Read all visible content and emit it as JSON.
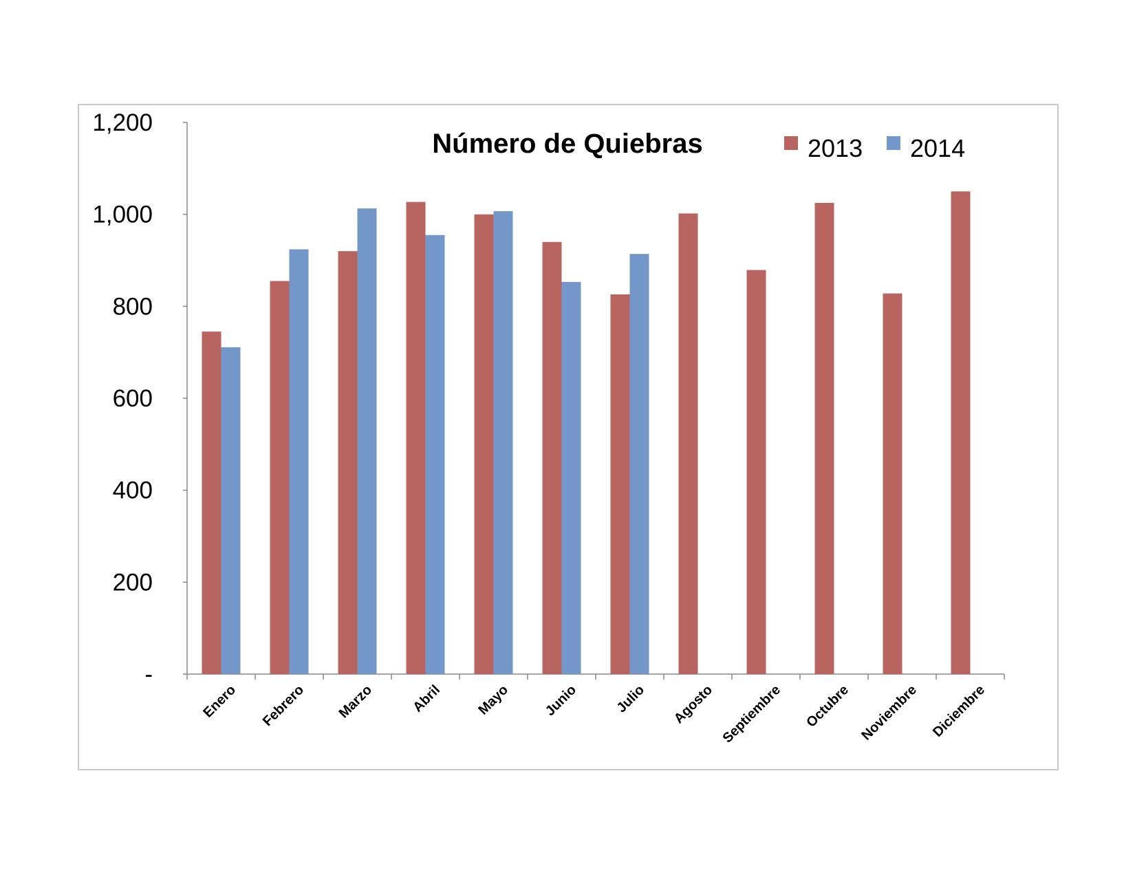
{
  "chart_data": {
    "type": "bar",
    "title": "Número de Quiebras",
    "categories": [
      "Enero",
      "Febrero",
      "Marzo",
      "Abril",
      "Mayo",
      "Junio",
      "Julio",
      "Agosto",
      "Septiembre",
      "Octubre",
      "Noviembre",
      "Diciembre"
    ],
    "series": [
      {
        "name": "2013",
        "color": "#b86562",
        "values": [
          745,
          855,
          920,
          1027,
          1000,
          940,
          826,
          1002,
          879,
          1025,
          828,
          1050
        ]
      },
      {
        "name": "2014",
        "color": "#7497c9",
        "values": [
          711,
          924,
          1013,
          955,
          1007,
          853,
          914,
          null,
          null,
          null,
          null,
          null
        ]
      }
    ],
    "ylim": [
      0,
      1200
    ],
    "yticks": [
      0,
      200,
      400,
      600,
      800,
      1000,
      1200
    ],
    "ytick_labels": [
      "-",
      "200",
      "400",
      "600",
      "800",
      "1,000",
      "1,200"
    ],
    "legend": "top-right",
    "grid": false
  }
}
